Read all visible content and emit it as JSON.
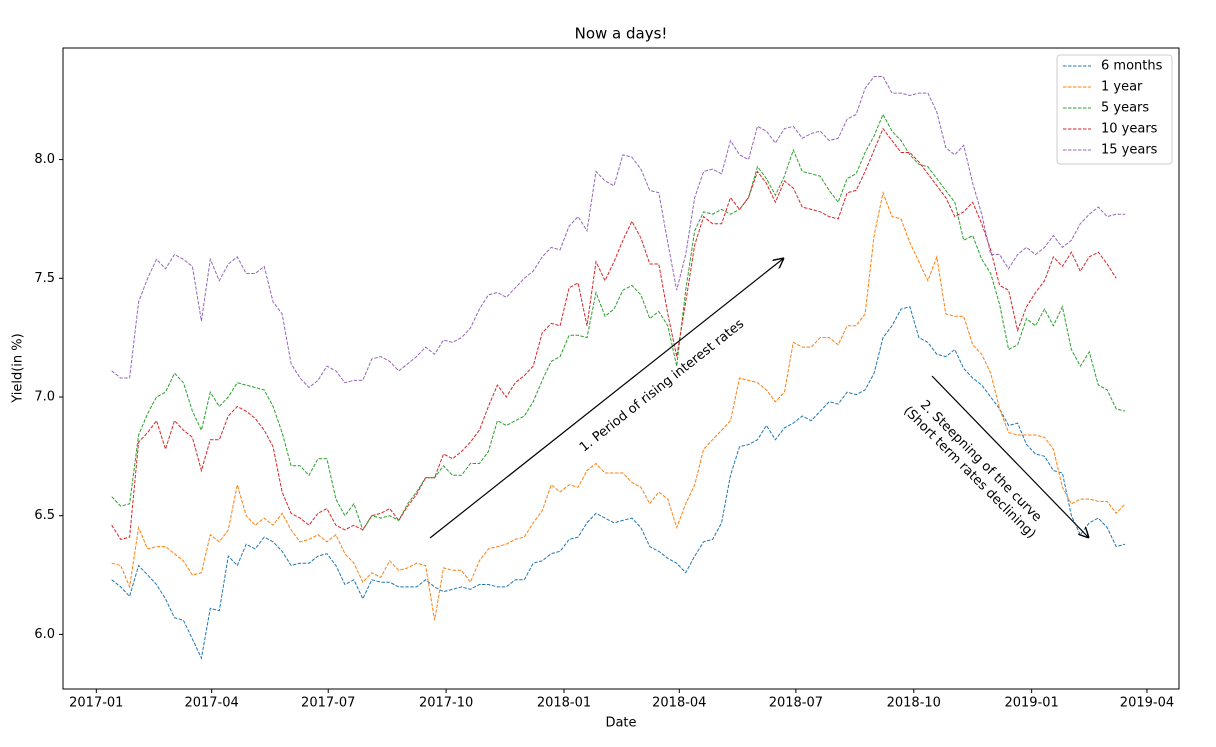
{
  "chart_data": {
    "type": "line",
    "title": "Now a days!",
    "x_label": "Date",
    "y_label": "Yield(in %)",
    "legend": "upper right",
    "line_style": "dashed",
    "x": [
      "2017-01-13",
      "2017-01-20",
      "2017-01-27",
      "2017-02-03",
      "2017-02-10",
      "2017-02-17",
      "2017-02-24",
      "2017-03-03",
      "2017-03-10",
      "2017-03-17",
      "2017-03-24",
      "2017-03-31",
      "2017-04-07",
      "2017-04-14",
      "2017-04-21",
      "2017-04-28",
      "2017-05-05",
      "2017-05-12",
      "2017-05-19",
      "2017-05-26",
      "2017-06-02",
      "2017-06-09",
      "2017-06-16",
      "2017-06-23",
      "2017-06-30",
      "2017-07-07",
      "2017-07-14",
      "2017-07-21",
      "2017-07-28",
      "2017-08-04",
      "2017-08-11",
      "2017-08-18",
      "2017-08-25",
      "2017-09-01",
      "2017-09-08",
      "2017-09-15",
      "2017-09-22",
      "2017-09-29",
      "2017-10-06",
      "2017-10-13",
      "2017-10-20",
      "2017-10-27",
      "2017-11-03",
      "2017-11-10",
      "2017-11-17",
      "2017-11-24",
      "2017-12-01",
      "2017-12-08",
      "2017-12-15",
      "2017-12-22",
      "2017-12-29",
      "2018-01-05",
      "2018-01-12",
      "2018-01-19",
      "2018-01-26",
      "2018-02-02",
      "2018-02-09",
      "2018-02-16",
      "2018-02-23",
      "2018-03-02",
      "2018-03-09",
      "2018-03-16",
      "2018-03-23",
      "2018-03-30",
      "2018-04-06",
      "2018-04-13",
      "2018-04-20",
      "2018-04-27",
      "2018-05-04",
      "2018-05-11",
      "2018-05-18",
      "2018-05-25",
      "2018-06-01",
      "2018-06-08",
      "2018-06-15",
      "2018-06-22",
      "2018-06-29",
      "2018-07-06",
      "2018-07-13",
      "2018-07-20",
      "2018-07-27",
      "2018-08-03",
      "2018-08-10",
      "2018-08-17",
      "2018-08-24",
      "2018-08-31",
      "2018-09-07",
      "2018-09-14",
      "2018-09-21",
      "2018-09-28",
      "2018-10-05",
      "2018-10-12",
      "2018-10-19",
      "2018-10-26",
      "2018-11-02",
      "2018-11-09",
      "2018-11-16",
      "2018-11-23",
      "2018-11-30",
      "2018-12-07",
      "2018-12-14",
      "2018-12-21",
      "2018-12-28",
      "2019-01-04",
      "2019-01-11",
      "2019-01-18",
      "2019-01-25",
      "2019-02-01",
      "2019-02-08",
      "2019-02-15",
      "2019-02-22",
      "2019-03-01",
      "2019-03-08",
      "2019-03-15"
    ],
    "series": [
      {
        "name": "6 months",
        "color": "#1f77b4",
        "values": [
          6.23,
          6.2,
          6.16,
          6.29,
          6.25,
          6.21,
          6.15,
          6.07,
          6.06,
          5.98,
          5.9,
          6.11,
          6.1,
          6.33,
          6.29,
          6.38,
          6.36,
          6.41,
          6.39,
          6.35,
          6.29,
          6.3,
          6.3,
          6.33,
          6.34,
          6.29,
          6.21,
          6.23,
          6.15,
          6.23,
          6.22,
          6.22,
          6.2,
          6.2,
          6.2,
          6.23,
          6.2,
          6.18,
          6.19,
          6.2,
          6.19,
          6.21,
          6.21,
          6.2,
          6.2,
          6.23,
          6.23,
          6.3,
          6.31,
          6.34,
          6.35,
          6.4,
          6.41,
          6.47,
          6.51,
          6.49,
          6.47,
          6.48,
          6.49,
          6.45,
          6.37,
          6.35,
          6.32,
          6.3,
          6.26,
          6.33,
          6.39,
          6.4,
          6.47,
          6.67,
          6.79,
          6.8,
          6.82,
          6.88,
          6.82,
          6.87,
          6.89,
          6.92,
          6.9,
          6.94,
          6.98,
          6.97,
          7.02,
          7.01,
          7.03,
          7.1,
          7.25,
          7.3,
          7.37,
          7.38,
          7.25,
          7.23,
          7.18,
          7.17,
          7.2,
          7.12,
          7.08,
          7.05,
          7.0,
          6.95,
          6.88,
          6.89,
          6.8,
          6.76,
          6.75,
          6.69,
          6.68,
          6.5,
          6.42,
          6.47,
          6.49,
          6.45,
          6.37,
          6.38
        ]
      },
      {
        "name": "1 year",
        "color": "#ff7f0e",
        "values": [
          6.3,
          6.29,
          6.2,
          6.45,
          6.36,
          6.37,
          6.37,
          6.34,
          6.31,
          6.25,
          6.26,
          6.42,
          6.39,
          6.44,
          6.63,
          6.5,
          6.46,
          6.49,
          6.46,
          6.51,
          6.44,
          6.39,
          6.4,
          6.42,
          6.39,
          6.42,
          6.34,
          6.3,
          6.22,
          6.26,
          6.24,
          6.31,
          6.27,
          6.28,
          6.3,
          6.29,
          6.06,
          6.28,
          6.27,
          6.27,
          6.22,
          6.31,
          6.36,
          6.37,
          6.38,
          6.4,
          6.41,
          6.47,
          6.52,
          6.63,
          6.6,
          6.63,
          6.62,
          6.69,
          6.72,
          6.68,
          6.68,
          6.68,
          6.64,
          6.62,
          6.55,
          6.6,
          6.57,
          6.45,
          6.55,
          6.63,
          6.78,
          6.82,
          6.86,
          6.9,
          7.08,
          7.07,
          7.06,
          7.03,
          6.98,
          7.02,
          7.23,
          7.21,
          7.21,
          7.25,
          7.25,
          7.22,
          7.3,
          7.3,
          7.35,
          7.68,
          7.86,
          7.76,
          7.75,
          7.65,
          7.57,
          7.49,
          7.59,
          7.35,
          7.34,
          7.34,
          7.22,
          7.18,
          7.1,
          6.95,
          6.85,
          6.84,
          6.84,
          6.84,
          6.83,
          6.78,
          6.62,
          6.55,
          6.57,
          6.57,
          6.56,
          6.56,
          6.51,
          6.55
        ]
      },
      {
        "name": "5 years",
        "color": "#2ca02c",
        "values": [
          6.58,
          6.54,
          6.55,
          6.84,
          6.93,
          7.0,
          7.02,
          7.1,
          7.06,
          6.94,
          6.86,
          7.02,
          6.96,
          7.0,
          7.06,
          7.05,
          7.04,
          7.03,
          6.96,
          6.85,
          6.71,
          6.71,
          6.67,
          6.74,
          6.74,
          6.57,
          6.5,
          6.55,
          6.44,
          6.5,
          6.49,
          6.5,
          6.48,
          6.55,
          6.6,
          6.66,
          6.66,
          6.71,
          6.67,
          6.67,
          6.72,
          6.72,
          6.77,
          6.9,
          6.88,
          6.9,
          6.92,
          6.98,
          7.07,
          7.15,
          7.17,
          7.26,
          7.26,
          7.25,
          7.44,
          7.34,
          7.37,
          7.45,
          7.47,
          7.43,
          7.33,
          7.36,
          7.3,
          7.13,
          7.45,
          7.7,
          7.78,
          7.77,
          7.79,
          7.77,
          7.79,
          7.84,
          7.97,
          7.92,
          7.85,
          7.93,
          8.04,
          7.95,
          7.94,
          7.93,
          7.87,
          7.82,
          7.92,
          7.94,
          8.03,
          8.1,
          8.19,
          8.12,
          8.08,
          8.02,
          7.98,
          7.97,
          7.92,
          7.87,
          7.82,
          7.66,
          7.68,
          7.58,
          7.52,
          7.39,
          7.2,
          7.22,
          7.33,
          7.3,
          7.37,
          7.3,
          7.38,
          7.2,
          7.13,
          7.19,
          7.05,
          7.03,
          6.95,
          6.94
        ]
      },
      {
        "name": "10 years",
        "color": "#d62728",
        "values": [
          6.46,
          6.4,
          6.41,
          6.81,
          6.85,
          6.9,
          6.78,
          6.9,
          6.86,
          6.83,
          6.69,
          6.82,
          6.82,
          6.92,
          6.96,
          6.94,
          6.91,
          6.86,
          6.79,
          6.6,
          6.51,
          6.49,
          6.46,
          6.51,
          6.53,
          6.46,
          6.44,
          6.46,
          6.44,
          6.5,
          6.51,
          6.53,
          6.48,
          6.54,
          6.59,
          6.66,
          6.66,
          6.76,
          6.74,
          6.77,
          6.81,
          6.86,
          6.96,
          7.05,
          7.0,
          7.06,
          7.09,
          7.13,
          7.27,
          7.31,
          7.3,
          7.46,
          7.48,
          7.3,
          7.57,
          7.49,
          7.57,
          7.66,
          7.74,
          7.67,
          7.56,
          7.56,
          7.35,
          7.17,
          7.4,
          7.64,
          7.76,
          7.73,
          7.73,
          7.84,
          7.79,
          7.84,
          7.95,
          7.9,
          7.82,
          7.91,
          7.88,
          7.8,
          7.79,
          7.78,
          7.76,
          7.75,
          7.86,
          7.87,
          7.95,
          8.04,
          8.13,
          8.08,
          8.03,
          8.03,
          7.99,
          7.94,
          7.89,
          7.84,
          7.76,
          7.78,
          7.82,
          7.73,
          7.62,
          7.47,
          7.45,
          7.28,
          7.38,
          7.44,
          7.49,
          7.59,
          7.55,
          7.61,
          7.53,
          7.59,
          7.61,
          7.56,
          7.5,
          null
        ]
      },
      {
        "name": "15 years",
        "color": "#9467bd",
        "values": [
          7.11,
          7.08,
          7.08,
          7.4,
          7.5,
          7.58,
          7.54,
          7.6,
          7.58,
          7.55,
          7.32,
          7.58,
          7.49,
          7.56,
          7.59,
          7.52,
          7.52,
          7.55,
          7.4,
          7.35,
          7.14,
          7.08,
          7.04,
          7.07,
          7.13,
          7.11,
          7.06,
          7.07,
          7.07,
          7.16,
          7.17,
          7.15,
          7.11,
          7.14,
          7.17,
          7.21,
          7.18,
          7.24,
          7.23,
          7.25,
          7.29,
          7.37,
          7.43,
          7.44,
          7.42,
          7.46,
          7.5,
          7.53,
          7.59,
          7.63,
          7.62,
          7.72,
          7.76,
          7.7,
          7.95,
          7.91,
          7.89,
          8.02,
          8.01,
          7.96,
          7.87,
          7.86,
          7.65,
          7.45,
          7.6,
          7.84,
          7.95,
          7.96,
          7.94,
          8.08,
          8.02,
          8.0,
          8.14,
          8.12,
          8.07,
          8.13,
          8.14,
          8.09,
          8.11,
          8.12,
          8.08,
          8.09,
          8.17,
          8.19,
          8.3,
          8.35,
          8.35,
          8.28,
          8.28,
          8.27,
          8.28,
          8.28,
          8.2,
          8.05,
          8.02,
          8.06,
          7.9,
          7.77,
          7.6,
          7.6,
          7.54,
          7.6,
          7.63,
          7.6,
          7.63,
          7.68,
          7.63,
          7.66,
          7.73,
          7.77,
          7.8,
          7.76,
          7.77,
          7.77
        ]
      }
    ],
    "xlim": [
      "2016-12-06",
      "2019-04-26"
    ],
    "xticks": [
      "2017-01",
      "2017-04",
      "2017-07",
      "2017-10",
      "2018-01",
      "2018-04",
      "2018-07",
      "2018-10",
      "2019-01",
      "2019-04"
    ],
    "ylim": [
      5.77,
      8.47
    ],
    "yticks": [
      {
        "value": 6,
        "label": "6.0"
      },
      {
        "value": 6.5,
        "label": "6.5"
      },
      {
        "value": 7,
        "label": "7.0"
      },
      {
        "value": 7.5,
        "label": "7.5"
      },
      {
        "value": 8,
        "label": "8.0"
      }
    ],
    "annotations": [
      {
        "text": [
          "1. Period of rising interest rates"
        ]
      },
      {
        "text": [
          "2. Steepning of the curve",
          "(Short term rates declining)"
        ]
      }
    ]
  }
}
